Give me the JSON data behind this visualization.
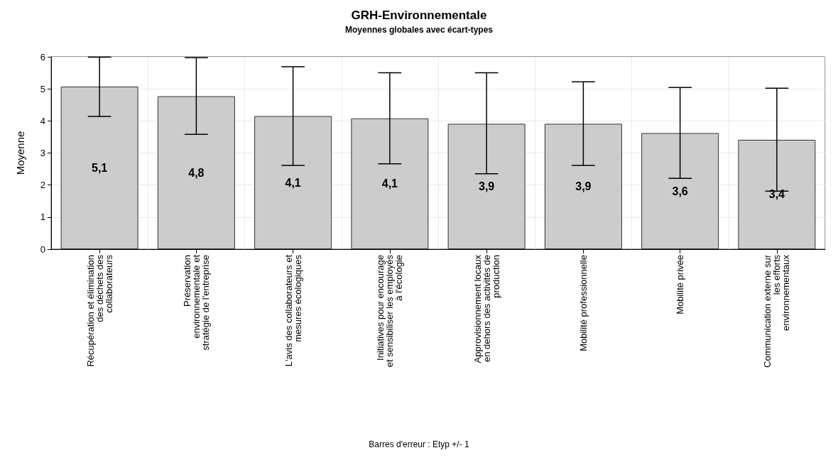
{
  "chart_data": {
    "type": "bar",
    "title": "GRH-Environnementale",
    "subtitle": "Moyennes globales avec écart-types",
    "ylabel": "Moyenne",
    "categories": [
      "Récupération et élimination\ndes déchets des\ncollaborateurs",
      "Préservation\nenvironnementale et\nstratégie de l'entreprise",
      "L'avis des collaborateurs et\nmesures écologiques",
      "Initiatives pour encourage\net sensibiliser les employés\nà l'écologie",
      "Approvisionnement locaux\nen dehors des activités de\nproduction",
      "Mobilité professionnelle",
      "Mobilité privée",
      "Communication externe sur\nles efforts\nenvironnementaux"
    ],
    "values": [
      5.07,
      4.77,
      4.15,
      4.08,
      3.91,
      3.91,
      3.62,
      3.41
    ],
    "value_labels": [
      "5,1",
      "4,8",
      "4,1",
      "4,1",
      "3,9",
      "3,9",
      "3,6",
      "3,4"
    ],
    "errors": [
      [
        4.14,
        5.99
      ],
      [
        3.58,
        5.97
      ],
      [
        2.61,
        5.69
      ],
      [
        2.66,
        5.5
      ],
      [
        2.35,
        5.5
      ],
      [
        2.61,
        5.22
      ],
      [
        2.21,
        5.04
      ],
      [
        1.81,
        5.02
      ]
    ],
    "color": "#cccccc",
    "ylim": [
      0,
      6
    ],
    "yticks": [
      0,
      1,
      2,
      3,
      4,
      5,
      6
    ],
    "grid": true,
    "annotations": [
      "Barres d'erreur : Etyp +/- 1"
    ]
  }
}
